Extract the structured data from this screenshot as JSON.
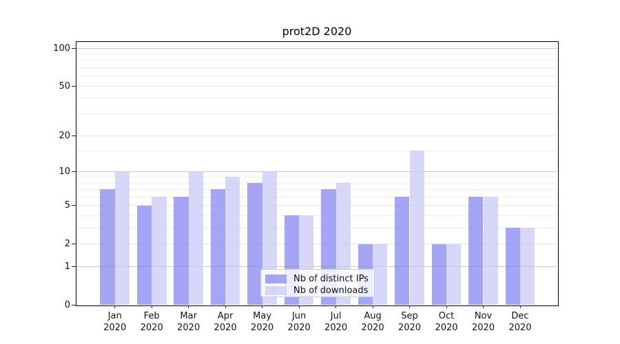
{
  "figure": {
    "title": "prot2D 2020"
  },
  "chart_data": {
    "type": "bar",
    "title": "prot2D 2020",
    "categories": [
      "Jan",
      "Feb",
      "Mar",
      "Apr",
      "May",
      "Jun",
      "Jul",
      "Aug",
      "Sep",
      "Oct",
      "Nov",
      "Dec"
    ],
    "category_year": "2020",
    "series": [
      {
        "name": "Nb of distinct IPs",
        "color": "#8282f2",
        "alpha": 0.72,
        "displayed_color": "#a5a5f5",
        "values": [
          7,
          5,
          6,
          7,
          8,
          4,
          7,
          2,
          6,
          2,
          6,
          3
        ]
      },
      {
        "name": "Nb of downloads",
        "color": "#c8c8f7",
        "alpha": 0.72,
        "displayed_color": "#d7d7f9",
        "values": [
          10,
          6,
          10,
          9,
          10,
          4,
          8,
          2,
          15,
          2,
          6,
          3
        ]
      }
    ],
    "yscale": "log1p",
    "ylim": [
      0,
      113
    ],
    "y_ticks": [
      {
        "value": 0,
        "label": "0"
      },
      {
        "value": 1,
        "label": "1"
      },
      {
        "value": 2,
        "label": "2"
      },
      {
        "value": 5,
        "label": "5"
      },
      {
        "value": 10,
        "label": "10"
      },
      {
        "value": 20,
        "label": "20"
      },
      {
        "value": 50,
        "label": "50"
      },
      {
        "value": 100,
        "label": "100"
      }
    ],
    "y_decade_gridlines": [
      1,
      10,
      100
    ],
    "y_minor_gridlines": [
      3,
      4,
      6,
      7,
      8,
      9,
      15,
      30,
      40,
      60,
      70,
      80,
      90
    ],
    "grid": "both",
    "legend": {
      "position": "lower center"
    },
    "colors": {
      "gridline_major": "#c6c6c6",
      "gridline_light": "#e4e4e8",
      "gridline_minor": "#ededf0",
      "spine": "#000000",
      "tick": "#222222",
      "text": "#111111"
    }
  }
}
